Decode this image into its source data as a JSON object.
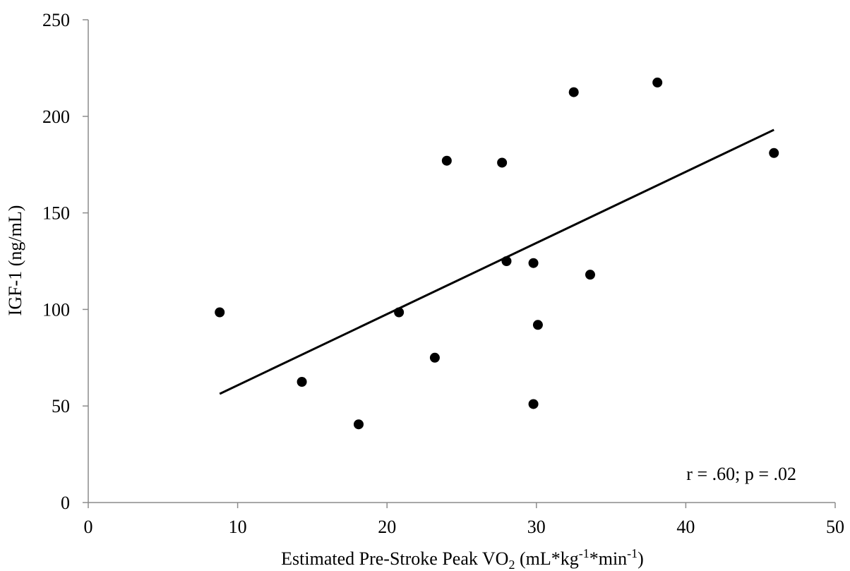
{
  "chart_data": {
    "type": "scatter",
    "x": [
      8.8,
      14.3,
      18.1,
      20.8,
      23.2,
      24.0,
      27.7,
      28.0,
      29.8,
      29.8,
      30.1,
      32.5,
      33.6,
      38.1,
      45.9
    ],
    "y": [
      98.5,
      62.5,
      40.5,
      98.5,
      75.0,
      177.0,
      176.0,
      125.0,
      51.0,
      124.0,
      92.0,
      212.5,
      118.0,
      217.5,
      181.0
    ],
    "trendline": {
      "type": "linear",
      "x": [
        8.8,
        45.9
      ],
      "y": [
        56.3,
        193.0
      ]
    },
    "xlabel_parts": {
      "p1": "Estimated Pre-Stroke Peak VO",
      "sub2": "2",
      "p2": " (mL*kg",
      "sup1": "-1",
      "p3": "*min",
      "sup2": "-1",
      "p4": ")"
    },
    "ylabel": "IGF-1 (ng/mL)",
    "xlim": [
      0,
      50
    ],
    "ylim": [
      0,
      250
    ],
    "xticks": [
      0,
      10,
      20,
      30,
      40,
      50
    ],
    "yticks": [
      0,
      50,
      100,
      150,
      200,
      250
    ],
    "annotation": "r = .60; p = .02",
    "grid": false,
    "legend": "none",
    "marker_color": "#000000"
  }
}
